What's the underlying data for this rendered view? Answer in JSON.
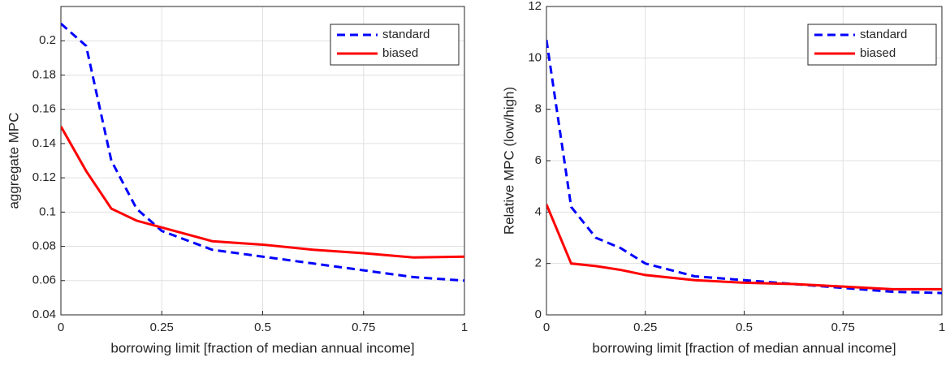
{
  "chart_data": [
    {
      "type": "line",
      "xlabel": "borrowing limit [fraction of median annual income]",
      "ylabel": "aggregate MPC",
      "x": [
        0,
        0.0625,
        0.125,
        0.1875,
        0.25,
        0.375,
        0.5,
        0.625,
        0.75,
        0.875,
        1
      ],
      "series": [
        {
          "name": "standard",
          "color": "#0000ff",
          "line_style": "dashed",
          "values": [
            0.21,
            0.197,
            0.13,
            0.102,
            0.089,
            0.078,
            0.074,
            0.07,
            0.066,
            0.062,
            0.06
          ]
        },
        {
          "name": "biased",
          "color": "#ff0000",
          "line_style": "solid",
          "values": [
            0.15,
            0.124,
            0.102,
            0.095,
            0.091,
            0.083,
            0.081,
            0.078,
            0.076,
            0.0735,
            0.074
          ]
        }
      ],
      "xlim": [
        0,
        1
      ],
      "xticks": [
        0,
        0.25,
        0.5,
        0.75,
        1
      ],
      "ylim": [
        0.04,
        0.22
      ],
      "yticks": [
        0.04,
        0.06,
        0.08,
        0.1,
        0.12,
        0.14,
        0.16,
        0.18,
        0.2
      ],
      "grid": true,
      "legend": "northeast"
    },
    {
      "type": "line",
      "xlabel": "borrowing limit [fraction of median annual income]",
      "ylabel": "Relative MPC (low/high)",
      "x": [
        0,
        0.0625,
        0.125,
        0.1875,
        0.25,
        0.375,
        0.5,
        0.625,
        0.75,
        0.875,
        1
      ],
      "series": [
        {
          "name": "standard",
          "color": "#0000ff",
          "line_style": "dashed",
          "values": [
            10.7,
            4.2,
            3.0,
            2.6,
            2.0,
            1.5,
            1.35,
            1.2,
            1.05,
            0.9,
            0.85
          ]
        },
        {
          "name": "biased",
          "color": "#ff0000",
          "line_style": "solid",
          "values": [
            4.3,
            2.0,
            1.9,
            1.75,
            1.55,
            1.35,
            1.25,
            1.2,
            1.1,
            1.0,
            1.0
          ]
        }
      ],
      "xlim": [
        0,
        1
      ],
      "xticks": [
        0,
        0.25,
        0.5,
        0.75,
        1
      ],
      "ylim": [
        0,
        12
      ],
      "yticks": [
        0,
        2,
        4,
        6,
        8,
        10,
        12
      ],
      "grid": true,
      "legend": "northeast"
    }
  ]
}
